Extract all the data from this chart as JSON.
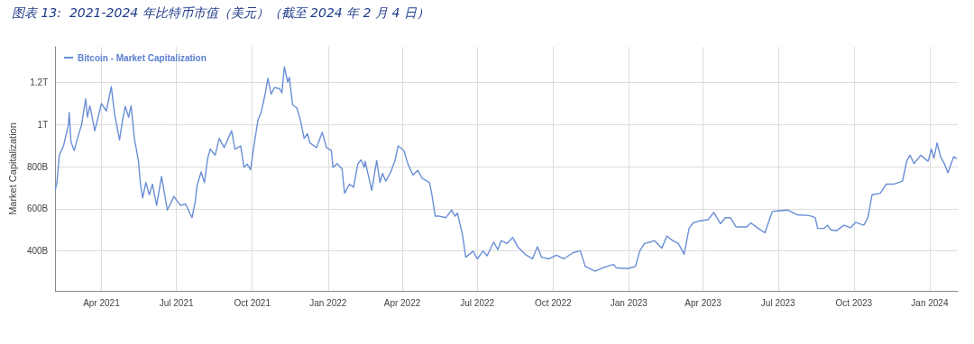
{
  "chart_data": {
    "type": "line",
    "title": "图表 13:  2021-2024 年比特币市值（美元）（截至 2024 年 2 月 4 日）",
    "ylabel": "Market Capitalization",
    "legend": "top left",
    "grid": true,
    "marker": "none",
    "line_style": "solid",
    "xlim": [
      "2021-02-04",
      "2024-02-04"
    ],
    "xticks": [
      {
        "value": "2021-04-01",
        "label": "Apr 2021"
      },
      {
        "value": "2021-07-01",
        "label": "Jul 2021"
      },
      {
        "value": "2021-10-01",
        "label": "Oct 2021"
      },
      {
        "value": "2022-01-01",
        "label": "Jan 2022"
      },
      {
        "value": "2022-04-01",
        "label": "Apr 2022"
      },
      {
        "value": "2022-07-01",
        "label": "Jul 2022"
      },
      {
        "value": "2022-10-01",
        "label": "Oct 2022"
      },
      {
        "value": "2023-01-01",
        "label": "Jan 2023"
      },
      {
        "value": "2023-04-01",
        "label": "Apr 2023"
      },
      {
        "value": "2023-07-01",
        "label": "Jul 2023"
      },
      {
        "value": "2023-10-01",
        "label": "Oct 2023"
      },
      {
        "value": "2024-01-01",
        "label": "Jan 2024"
      }
    ],
    "ylim": [
      210000000000.0,
      1370000000000.0
    ],
    "yticks": [
      {
        "value": 400000000000.0,
        "label": "400B"
      },
      {
        "value": 600000000000.0,
        "label": "600B"
      },
      {
        "value": 800000000000.0,
        "label": "800B"
      },
      {
        "value": 1000000000000.0,
        "label": "1T"
      },
      {
        "value": 1200000000000.0,
        "label": "1.2T"
      }
    ],
    "x": [
      "2021-02-04",
      "2021-02-06",
      "2021-02-09",
      "2021-02-14",
      "2021-02-20",
      "2021-02-21",
      "2021-02-23",
      "2021-02-27",
      "2021-03-03",
      "2021-03-08",
      "2021-03-13",
      "2021-03-15",
      "2021-03-18",
      "2021-03-24",
      "2021-04-01",
      "2021-04-07",
      "2021-04-13",
      "2021-04-17",
      "2021-04-23",
      "2021-04-27",
      "2021-04-30",
      "2021-05-04",
      "2021-05-07",
      "2021-05-11",
      "2021-05-16",
      "2021-05-18",
      "2021-05-21",
      "2021-05-25",
      "2021-05-29",
      "2021-06-02",
      "2021-06-07",
      "2021-06-13",
      "2021-06-20",
      "2021-06-28",
      "2021-07-06",
      "2021-07-12",
      "2021-07-20",
      "2021-07-24",
      "2021-07-26",
      "2021-07-31",
      "2021-08-04",
      "2021-08-08",
      "2021-08-11",
      "2021-08-17",
      "2021-08-22",
      "2021-08-28",
      "2021-09-06",
      "2021-09-10",
      "2021-09-17",
      "2021-09-21",
      "2021-09-25",
      "2021-09-29",
      "2021-10-03",
      "2021-10-08",
      "2021-10-12",
      "2021-10-17",
      "2021-10-20",
      "2021-10-24",
      "2021-10-28",
      "2021-11-03",
      "2021-11-06",
      "2021-11-09",
      "2021-11-13",
      "2021-11-15",
      "2021-11-19",
      "2021-11-24",
      "2021-11-28",
      "2021-12-03",
      "2021-12-07",
      "2021-12-10",
      "2021-12-18",
      "2021-12-25",
      "2021-12-30",
      "2022-01-05",
      "2022-01-07",
      "2022-01-12",
      "2022-01-18",
      "2022-01-21",
      "2022-01-27",
      "2022-02-01",
      "2022-02-06",
      "2022-02-10",
      "2022-02-14",
      "2022-02-15",
      "2022-02-23",
      "2022-03-01",
      "2022-03-05",
      "2022-03-08",
      "2022-03-12",
      "2022-03-18",
      "2022-03-23",
      "2022-03-27",
      "2022-04-03",
      "2022-04-08",
      "2022-04-14",
      "2022-04-20",
      "2022-04-25",
      "2022-05-04",
      "2022-05-07",
      "2022-05-11",
      "2022-05-16",
      "2022-05-24",
      "2022-05-31",
      "2022-06-04",
      "2022-06-07",
      "2022-06-13",
      "2022-06-17",
      "2022-06-26",
      "2022-07-01",
      "2022-07-08",
      "2022-07-13",
      "2022-07-21",
      "2022-07-26",
      "2022-07-30",
      "2022-08-06",
      "2022-08-13",
      "2022-08-19",
      "2022-08-28",
      "2022-09-06",
      "2022-09-12",
      "2022-09-17",
      "2022-09-26",
      "2022-10-05",
      "2022-10-14",
      "2022-10-25",
      "2022-11-03",
      "2022-11-09",
      "2022-11-21",
      "2022-12-02",
      "2022-12-13",
      "2022-12-17",
      "2022-12-31",
      "2023-01-09",
      "2023-01-14",
      "2023-01-20",
      "2023-01-27",
      "2023-02-01",
      "2023-02-10",
      "2023-02-16",
      "2023-02-23",
      "2023-03-02",
      "2023-03-09",
      "2023-03-15",
      "2023-03-20",
      "2023-03-28",
      "2023-04-07",
      "2023-04-14",
      "2023-04-22",
      "2023-04-28",
      "2023-05-04",
      "2023-05-11",
      "2023-05-24",
      "2023-05-29",
      "2023-06-07",
      "2023-06-15",
      "2023-06-20",
      "2023-06-24",
      "2023-06-30",
      "2023-07-13",
      "2023-07-24",
      "2023-08-08",
      "2023-08-15",
      "2023-08-18",
      "2023-08-26",
      "2023-08-30",
      "2023-09-03",
      "2023-09-10",
      "2023-09-19",
      "2023-09-27",
      "2023-10-03",
      "2023-10-13",
      "2023-10-18",
      "2023-10-23",
      "2023-11-02",
      "2023-11-09",
      "2023-11-18",
      "2023-11-29",
      "2023-12-04",
      "2023-12-08",
      "2023-12-13",
      "2023-12-21",
      "2023-12-30",
      "2024-01-03",
      "2024-01-06",
      "2024-01-10",
      "2024-01-14",
      "2024-01-19",
      "2024-01-23",
      "2024-01-30",
      "2024-02-03"
    ],
    "series": [
      {
        "name": "Bitcoin - Market Capitalization",
        "color": "#6a8fd6",
        "values": [
          688000000000.0,
          725000000000.0,
          855000000000.0,
          899000000000.0,
          1000000000000.0,
          1058000000000.0,
          920000000000.0,
          877000000000.0,
          935000000000.0,
          1000000000000.0,
          1123000000000.0,
          1036000000000.0,
          1090000000000.0,
          971000000000.0,
          1101000000000.0,
          1065000000000.0,
          1181000000000.0,
          1051000000000.0,
          927000000000.0,
          1029000000000.0,
          1087000000000.0,
          1036000000000.0,
          1090000000000.0,
          935000000000.0,
          826000000000.0,
          732000000000.0,
          652000000000.0,
          725000000000.0,
          667000000000.0,
          717000000000.0,
          616000000000.0,
          754000000000.0,
          594000000000.0,
          659000000000.0,
          616000000000.0,
          623000000000.0,
          558000000000.0,
          638000000000.0,
          710000000000.0,
          775000000000.0,
          725000000000.0,
          841000000000.0,
          884000000000.0,
          855000000000.0,
          935000000000.0,
          891000000000.0,
          971000000000.0,
          884000000000.0,
          899000000000.0,
          797000000000.0,
          812000000000.0,
          786000000000.0,
          899000000000.0,
          1022000000000.0,
          1061000000000.0,
          1152000000000.0,
          1220000000000.0,
          1145000000000.0,
          1177000000000.0,
          1171000000000.0,
          1152000000000.0,
          1275000000000.0,
          1203000000000.0,
          1225000000000.0,
          1094000000000.0,
          1080000000000.0,
          1029000000000.0,
          935000000000.0,
          957000000000.0,
          913000000000.0,
          891000000000.0,
          964000000000.0,
          891000000000.0,
          877000000000.0,
          797000000000.0,
          815000000000.0,
          790000000000.0,
          674000000000.0,
          717000000000.0,
          703000000000.0,
          812000000000.0,
          833000000000.0,
          797000000000.0,
          826000000000.0,
          688000000000.0,
          829000000000.0,
          725000000000.0,
          768000000000.0,
          732000000000.0,
          775000000000.0,
          826000000000.0,
          899000000000.0,
          877000000000.0,
          812000000000.0,
          761000000000.0,
          783000000000.0,
          746000000000.0,
          725000000000.0,
          667000000000.0,
          565000000000.0,
          565000000000.0,
          558000000000.0,
          594000000000.0,
          565000000000.0,
          580000000000.0,
          478000000000.0,
          370000000000.0,
          399000000000.0,
          362000000000.0,
          399000000000.0,
          377000000000.0,
          442000000000.0,
          406000000000.0,
          449000000000.0,
          435000000000.0,
          464000000000.0,
          420000000000.0,
          384000000000.0,
          362000000000.0,
          420000000000.0,
          370000000000.0,
          362000000000.0,
          380000000000.0,
          362000000000.0,
          391000000000.0,
          401000000000.0,
          326000000000.0,
          304000000000.0,
          322000000000.0,
          336000000000.0,
          319000000000.0,
          316000000000.0,
          326000000000.0,
          399000000000.0,
          435000000000.0,
          442000000000.0,
          449000000000.0,
          413000000000.0,
          471000000000.0,
          449000000000.0,
          435000000000.0,
          384000000000.0,
          507000000000.0,
          533000000000.0,
          543000000000.0,
          548000000000.0,
          583000000000.0,
          529000000000.0,
          558000000000.0,
          558000000000.0,
          514000000000.0,
          514000000000.0,
          533000000000.0,
          507000000000.0,
          486000000000.0,
          543000000000.0,
          587000000000.0,
          590000000000.0,
          594000000000.0,
          572000000000.0,
          568000000000.0,
          558000000000.0,
          507000000000.0,
          507000000000.0,
          522000000000.0,
          500000000000.0,
          496000000000.0,
          522000000000.0,
          510000000000.0,
          536000000000.0,
          522000000000.0,
          558000000000.0,
          667000000000.0,
          674000000000.0,
          717000000000.0,
          717000000000.0,
          732000000000.0,
          826000000000.0,
          855000000000.0,
          815000000000.0,
          855000000000.0,
          826000000000.0,
          884000000000.0,
          841000000000.0,
          913000000000.0,
          848000000000.0,
          812000000000.0,
          771000000000.0,
          848000000000.0,
          838000000000.0
        ]
      }
    ]
  }
}
